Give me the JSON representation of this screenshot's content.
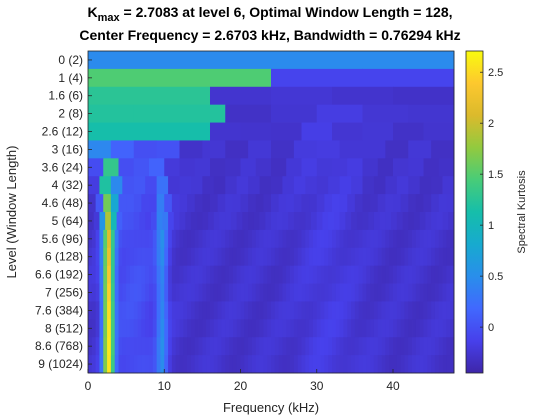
{
  "chart_data": {
    "type": "heatmap",
    "title_line1_main": "K",
    "title_line1_sub": "max",
    "title_line1_rest": " = 2.7083 at level 6, Optimal Window Length = 128,",
    "title_line2": "Center Frequency = 2.6703 kHz, Bandwidth = 0.76294 kHz",
    "xlabel": "Frequency (kHz)",
    "ylabel": "Level (Window Length)",
    "colorbar_label": "Spectral Kurtosis",
    "xlim": [
      0,
      48
    ],
    "x_ticks": [
      "0",
      "10",
      "20",
      "30",
      "40"
    ],
    "x_tick_values": [
      0,
      10,
      20,
      30,
      40
    ],
    "y_tick_labels": [
      "0   (2)",
      "1   (4)",
      "1.6   (6)",
      "2   (8)",
      "2.6  (12)",
      "3  (16)",
      "3.6  (24)",
      "4  (32)",
      "4.6  (48)",
      "5  (64)",
      "5.6  (96)",
      "6  (128)",
      "6.6  (192)",
      "7  (256)",
      "7.6  (384)",
      "8  (512)",
      "8.6  (768)",
      "9 (1024)"
    ],
    "levels": [
      0,
      1,
      1.6,
      2,
      2.6,
      3,
      3.6,
      4,
      4.6,
      5,
      5.6,
      6,
      6.6,
      7,
      7.6,
      8,
      8.6,
      9
    ],
    "window_lengths": [
      2,
      4,
      6,
      8,
      12,
      16,
      24,
      32,
      48,
      64,
      96,
      128,
      192,
      256,
      384,
      512,
      768,
      1024
    ],
    "clim": [
      -0.45,
      2.7083
    ],
    "colorbar_ticks": [
      "0",
      "0.5",
      "1",
      "1.5",
      "2",
      "2.5"
    ],
    "colorbar_tick_values": [
      0,
      0.5,
      1,
      1.5,
      2,
      2.5
    ],
    "colormap": "parula",
    "max_kurtosis": 2.7083,
    "optimal_level": 6,
    "optimal_window_length": 128,
    "center_frequency_khz": 2.6703,
    "bandwidth_khz": 0.76294,
    "grid": false
  }
}
